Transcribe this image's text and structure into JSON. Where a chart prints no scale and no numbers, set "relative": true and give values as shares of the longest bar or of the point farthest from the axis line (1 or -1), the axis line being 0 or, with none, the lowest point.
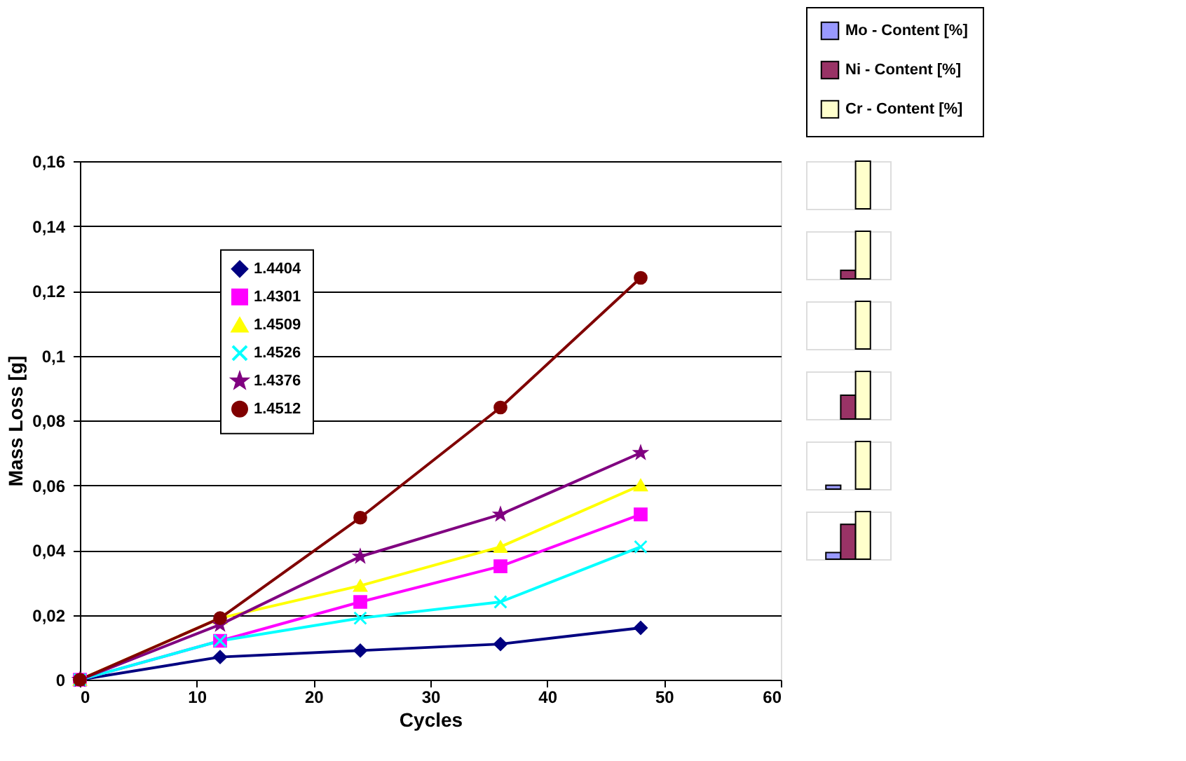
{
  "chart_data": [
    {
      "type": "line",
      "xlabel": "Cycles",
      "ylabel": "Mass Loss [g]",
      "x": [
        0,
        12,
        24,
        36,
        48
      ],
      "xlim": [
        0,
        60
      ],
      "xticks": [
        0,
        10,
        20,
        30,
        40,
        50,
        60
      ],
      "ylim": [
        0,
        0.16
      ],
      "yticks": [
        0,
        {
          "value": 0.02,
          "label": "0,02"
        },
        {
          "value": 0.04,
          "label": "0,04"
        },
        {
          "value": 0.06,
          "label": "0,06"
        },
        {
          "value": 0.08,
          "label": "0,08"
        },
        {
          "value": 0.1,
          "label": "0,1"
        },
        {
          "value": 0.12,
          "label": "0,12"
        },
        {
          "value": 0.14,
          "label": "0,14"
        },
        {
          "value": 0.16,
          "label": "0,16"
        }
      ],
      "grid": "y",
      "legend": "top left",
      "series": [
        {
          "name": "1.4404",
          "color": "#000080",
          "marker": "diamond",
          "values": [
            0,
            0.007,
            0.009,
            0.011,
            0.016
          ]
        },
        {
          "name": "1.4301",
          "color": "#ff00ff",
          "marker": "square",
          "values": [
            0,
            0.012,
            0.024,
            0.035,
            0.051
          ]
        },
        {
          "name": "1.4509",
          "color": "#ffff00",
          "marker": "triangle",
          "values": [
            0,
            0.019,
            0.029,
            0.041,
            0.06
          ]
        },
        {
          "name": "1.4526",
          "color": "#00ffff",
          "marker": "cross",
          "values": [
            0,
            0.012,
            0.019,
            0.024,
            0.041
          ]
        },
        {
          "name": "1.4376",
          "color": "#800080",
          "marker": "star",
          "values": [
            0,
            0.017,
            0.038,
            0.051,
            0.07
          ]
        },
        {
          "name": "1.4512",
          "color": "#800000",
          "marker": "circle",
          "values": [
            0,
            0.019,
            0.05,
            0.084,
            0.124
          ]
        }
      ]
    },
    {
      "type": "bar",
      "relative": true,
      "categories": [
        null
      ],
      "legend": "top",
      "series": [
        {
          "name": "Mo - Content [%]",
          "color": "#9999ff",
          "values": [
            null
          ]
        },
        {
          "name": "Ni - Content [%]",
          "color": "#993366",
          "values": [
            null
          ]
        },
        {
          "name": "Cr - Content [%]",
          "color": "#ffffcc",
          "values": [
            1
          ]
        }
      ]
    },
    {
      "type": "bar",
      "relative": true,
      "categories": [
        null
      ],
      "series": [
        {
          "color": "#9999ff",
          "values": [
            null
          ]
        },
        {
          "color": "#993366",
          "values": [
            0.18
          ]
        },
        {
          "color": "#ffffcc",
          "values": [
            1
          ]
        }
      ]
    },
    {
      "type": "bar",
      "relative": true,
      "categories": [
        null
      ],
      "series": [
        {
          "color": "#9999ff",
          "values": [
            null
          ]
        },
        {
          "color": "#993366",
          "values": [
            null
          ]
        },
        {
          "color": "#ffffcc",
          "values": [
            1
          ]
        }
      ]
    },
    {
      "type": "bar",
      "relative": true,
      "categories": [
        null
      ],
      "series": [
        {
          "color": "#9999ff",
          "values": [
            null
          ]
        },
        {
          "color": "#993366",
          "values": [
            0.5
          ]
        },
        {
          "color": "#ffffcc",
          "values": [
            1
          ]
        }
      ]
    },
    {
      "type": "bar",
      "relative": true,
      "categories": [
        null
      ],
      "series": [
        {
          "color": "#9999ff",
          "values": [
            0.08
          ]
        },
        {
          "color": "#993366",
          "values": [
            null
          ]
        },
        {
          "color": "#ffffcc",
          "values": [
            1
          ]
        }
      ]
    },
    {
      "type": "bar",
      "relative": true,
      "categories": [
        null
      ],
      "series": [
        {
          "color": "#9999ff",
          "values": [
            0.14
          ]
        },
        {
          "color": "#993366",
          "values": [
            0.73
          ]
        },
        {
          "color": "#ffffcc",
          "values": [
            1
          ]
        }
      ]
    }
  ]
}
